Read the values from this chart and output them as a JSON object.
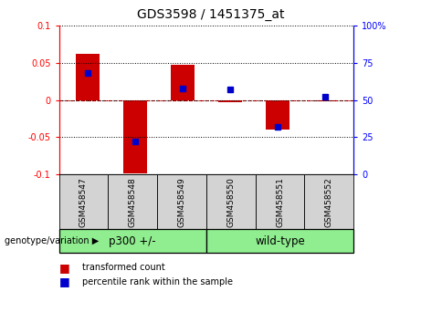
{
  "title": "GDS3598 / 1451375_at",
  "samples": [
    "GSM458547",
    "GSM458548",
    "GSM458549",
    "GSM458550",
    "GSM458551",
    "GSM458552"
  ],
  "transformed_counts": [
    0.062,
    -0.098,
    0.048,
    -0.003,
    -0.04,
    -0.002
  ],
  "percentile_ranks": [
    0.68,
    0.22,
    0.58,
    0.57,
    0.32,
    0.52
  ],
  "groups": [
    "p300 +/-",
    "p300 +/-",
    "p300 +/-",
    "wild-type",
    "wild-type",
    "wild-type"
  ],
  "bar_color": "#CC0000",
  "dot_color": "#0000CC",
  "left_ylim": [
    -0.1,
    0.1
  ],
  "right_ylim": [
    0,
    100
  ],
  "left_yticks": [
    -0.1,
    -0.05,
    0,
    0.05,
    0.1
  ],
  "right_yticks": [
    0,
    25,
    50,
    75,
    100
  ],
  "left_ytick_labels": [
    "-0.1",
    "-0.05",
    "0",
    "0.05",
    "0.1"
  ],
  "right_ytick_labels": [
    "0",
    "25",
    "50",
    "75",
    "100%"
  ],
  "bg_color": "#ffffff",
  "zero_line_color": "#CC0000",
  "group_label": "genotype/variation",
  "group_box_color": "#90EE90",
  "sample_box_color": "#d3d3d3"
}
